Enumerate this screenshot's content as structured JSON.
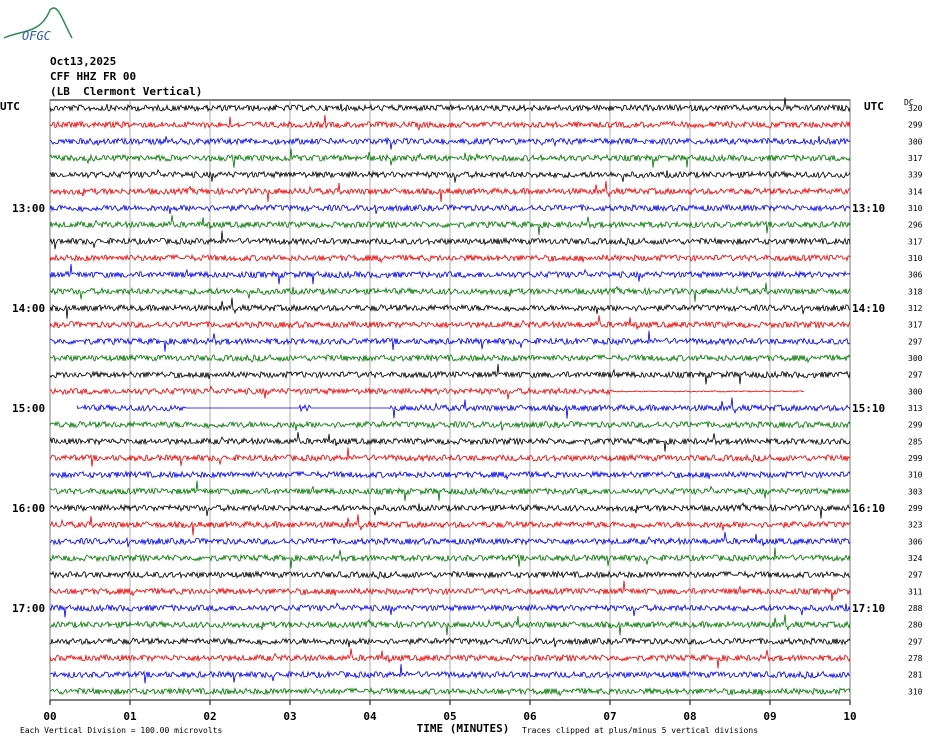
{
  "header": {
    "logo": "OFGC",
    "date": "Oct13,2025",
    "station": "CFF HHZ FR 00",
    "location": "(LB  Clermont Vertical)"
  },
  "axes": {
    "left_title": "UTC",
    "right_title": "UTC",
    "dc_title": "DC",
    "left_times": [
      "13:00",
      "14:00",
      "15:00",
      "16:00",
      "17:00"
    ],
    "right_times": [
      "13:10",
      "14:10",
      "15:10",
      "16:10",
      "17:10"
    ],
    "dc_values": [
      "320",
      "299",
      "300",
      "317",
      "339",
      "314",
      "310",
      "296",
      "317",
      "310",
      "306",
      "318",
      "312",
      "317",
      "297",
      "300",
      "297",
      "300",
      "313",
      "299",
      "285",
      "299",
      "310",
      "303",
      "299",
      "323",
      "306",
      "324",
      "297",
      "311",
      "288",
      "280",
      "297",
      "278",
      "281",
      "310"
    ],
    "x_ticks": [
      "00",
      "01",
      "02",
      "03",
      "04",
      "05",
      "06",
      "07",
      "08",
      "09",
      "10"
    ],
    "x_label": "TIME (MINUTES)"
  },
  "footer": {
    "left": "Each Vertical Division =  100.00 microvolts",
    "right": "Traces clipped at plus/minus 5 vertical divisions"
  }
}
